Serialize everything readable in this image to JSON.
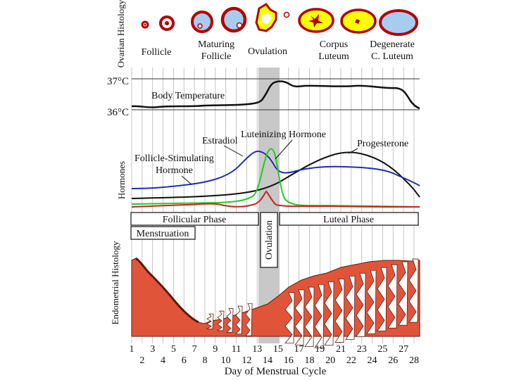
{
  "sections": {
    "ovarian": "Ovarian Histology",
    "hormones": "Hormones",
    "endometrial": "Endometrial Histology"
  },
  "ovary_labels": {
    "follicle": "Follicle",
    "maturing": [
      "Maturing",
      "Follicle"
    ],
    "ovulation": "Ovulation",
    "corpus": [
      "Corpus",
      "Luteum"
    ],
    "degenerate": [
      "Degenerate",
      "C. Luteum"
    ]
  },
  "temperature": {
    "hi": "37°C",
    "lo": "36°C",
    "label": "Body Temperature"
  },
  "hormone_labels": {
    "estradiol": "Estradiol",
    "lh": "Luteinizing  Hormone",
    "progesterone": "Progesterone",
    "fsh": [
      "Follicle-Stimulating",
      "Hormone"
    ]
  },
  "phases": {
    "follicular": "Follicular Phase",
    "luteal": "Luteal Phase",
    "menstruation": "Menstruation",
    "ovulation": "Ovulation"
  },
  "axis": {
    "odd_days": [
      "1",
      "3",
      "5",
      "7",
      "9",
      "11",
      "13",
      "15",
      "17",
      "19",
      "21",
      "23",
      "25",
      "27"
    ],
    "even_days": [
      "2",
      "4",
      "6",
      "8",
      "10",
      "12",
      "14",
      "16",
      "18",
      "20",
      "22",
      "24",
      "26",
      "28"
    ],
    "xlabel": "Day of Menstrual Cycle"
  },
  "colors": {
    "fsh": "#1f2fb0",
    "lh": "#22cc22",
    "estradiol": "#cc2222",
    "progesterone": "#111111",
    "endometrium": "#e0553a",
    "ovulation_band": "#c8c8c8",
    "corpus_yellow": "#ffff00",
    "ovary_red": "#b00000",
    "oocyte_blue": "#a8ccf0"
  }
}
